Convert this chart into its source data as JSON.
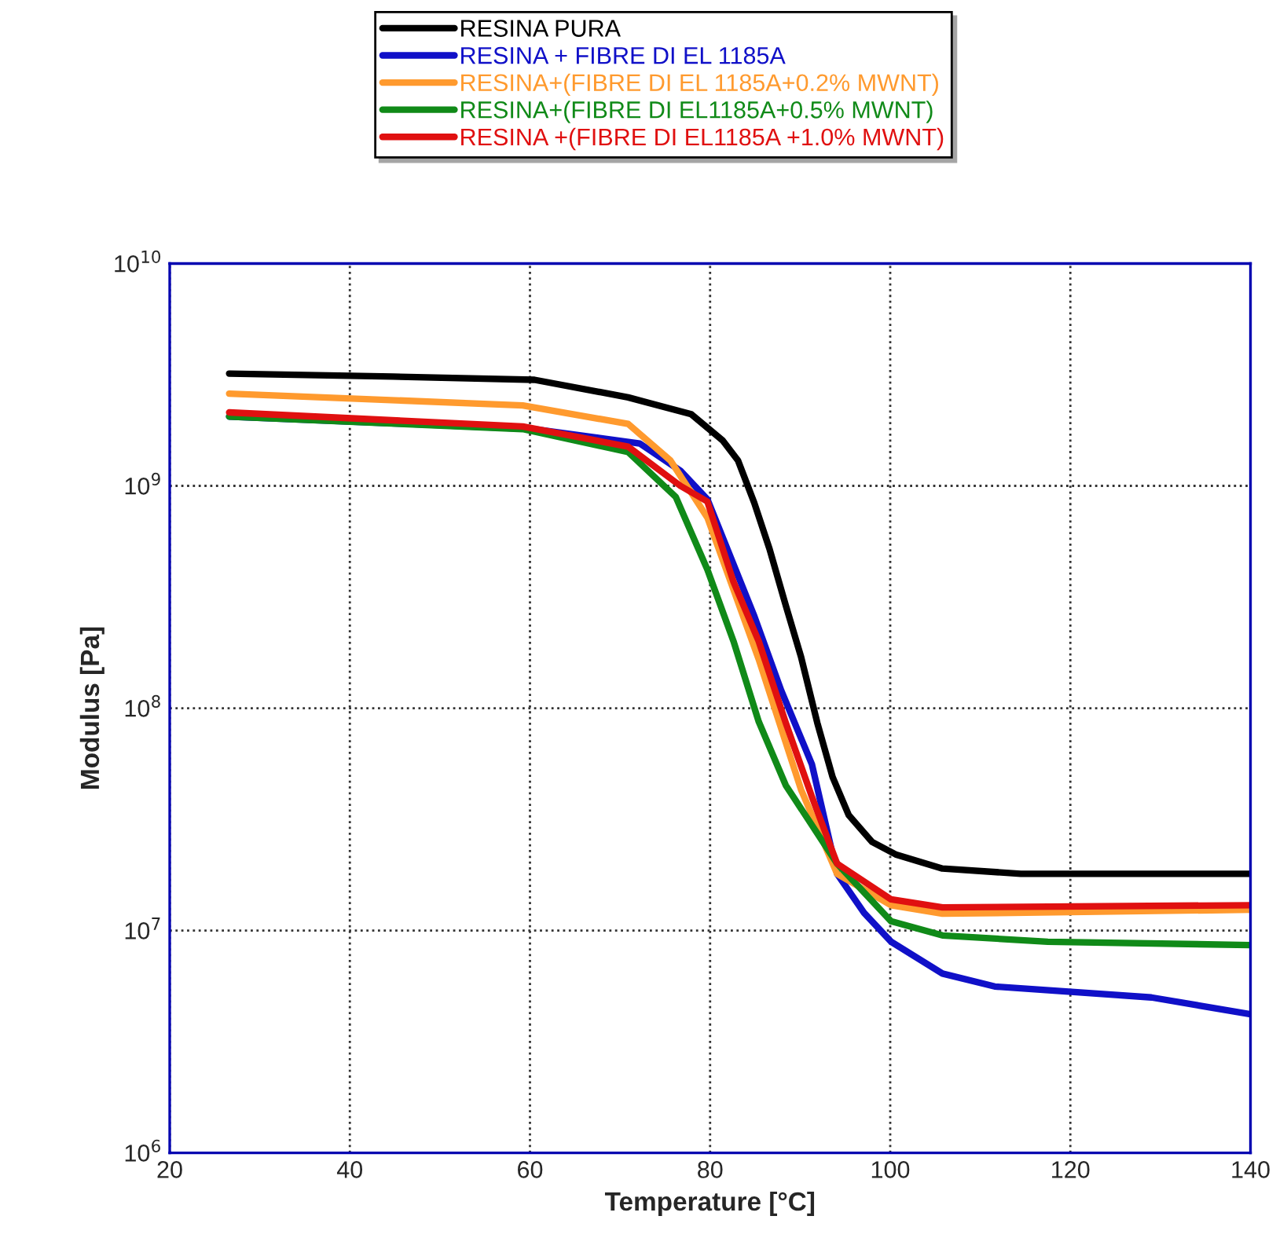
{
  "chart_data": {
    "type": "line",
    "xlabel": "Temperature [°C]",
    "ylabel": "Modulus [Pa]",
    "xlim": [
      20,
      140
    ],
    "xticks": [
      20,
      40,
      60,
      80,
      100,
      120,
      140
    ],
    "ylim": [
      1000000,
      10000000000
    ],
    "log": "y",
    "yticks": [
      {
        "value": 1000000,
        "label": "10$^{6}$"
      },
      {
        "value": 10000000,
        "label": "10$^{7}$"
      },
      {
        "value": 100000000,
        "label": "10$^{8}$"
      },
      {
        "value": 1000000000,
        "label": "10$^{9}$"
      },
      {
        "value": 10000000000,
        "label": "10$^{10}$"
      }
    ],
    "grid": true,
    "legend": "top",
    "marker": "none",
    "line_style": "solid",
    "series": [
      {
        "name": "RESINA PURA",
        "color": "#000000",
        "x": [
          26.6,
          44.8,
          60.5,
          70.9,
          77.9,
          81.4,
          83.1,
          84.9,
          86.6,
          88.4,
          90.1,
          91.9,
          93.6,
          95.4,
          98.0,
          100.6,
          105.8,
          114.5,
          123.3,
          140
        ],
        "values": [
          3200000000,
          3100000000,
          3000000000,
          2500000000,
          2100000000,
          1600000000,
          1300000000,
          840000000,
          520000000,
          290000000,
          170000000,
          86000000,
          49000000,
          33000000,
          25000000,
          22000000,
          19000000,
          18000000,
          18000000,
          18000000
        ]
      },
      {
        "name": "RESINA + FIBRE DI EL 1185A",
        "color": "#1010c8",
        "x": [
          26.6,
          60.5,
          72.2,
          76.7,
          79.7,
          84.9,
          87.9,
          91.3,
          94.1,
          97.1,
          100.1,
          105.8,
          111.6,
          129.0,
          140
        ],
        "values": [
          2050000000,
          1800000000,
          1550000000,
          1170000000,
          870000000,
          260000000,
          120000000,
          56000000,
          18000000,
          12000000,
          8900000,
          6400000,
          5600000,
          5000000,
          4200000
        ]
      },
      {
        "name": "RESINA+(FIBRE DI EL 1185A+0.2% MWNT)",
        "color": "#ff9a2e",
        "x": [
          26.6,
          59.2,
          70.9,
          75.6,
          79.7,
          85.4,
          90.1,
          94.1,
          100.1,
          105.8,
          140
        ],
        "values": [
          2600000000,
          2300000000,
          1900000000,
          1300000000,
          720000000,
          166000000,
          43000000,
          18000000,
          13000000,
          11900000,
          12400000
        ]
      },
      {
        "name": "RESINA+(FIBRE DI EL1185A+0.5% MWNT)",
        "color": "#108a18",
        "x": [
          26.6,
          59.2,
          70.9,
          76.2,
          79.7,
          82.6,
          85.4,
          88.4,
          94.1,
          100.1,
          105.8,
          117.5,
          140
        ],
        "values": [
          2050000000,
          1800000000,
          1420000000,
          890000000,
          420000000,
          200000000,
          87000000,
          45000000,
          20000000,
          11000000,
          9500000,
          8900000,
          8600000
        ]
      },
      {
        "name": "RESINA +(FIBRE DI EL1185A +1.0% MWNT)",
        "color": "#e01010",
        "x": [
          26.6,
          59.2,
          70.9,
          76.7,
          79.7,
          82.6,
          85.4,
          88.4,
          91.3,
          94.1,
          100.1,
          105.8,
          140
        ],
        "values": [
          2140000000,
          1850000000,
          1500000000,
          1000000000,
          850000000,
          370000000,
          200000000,
          86000000,
          40000000,
          20000000,
          13800000,
          12700000,
          13000000
        ]
      }
    ]
  }
}
